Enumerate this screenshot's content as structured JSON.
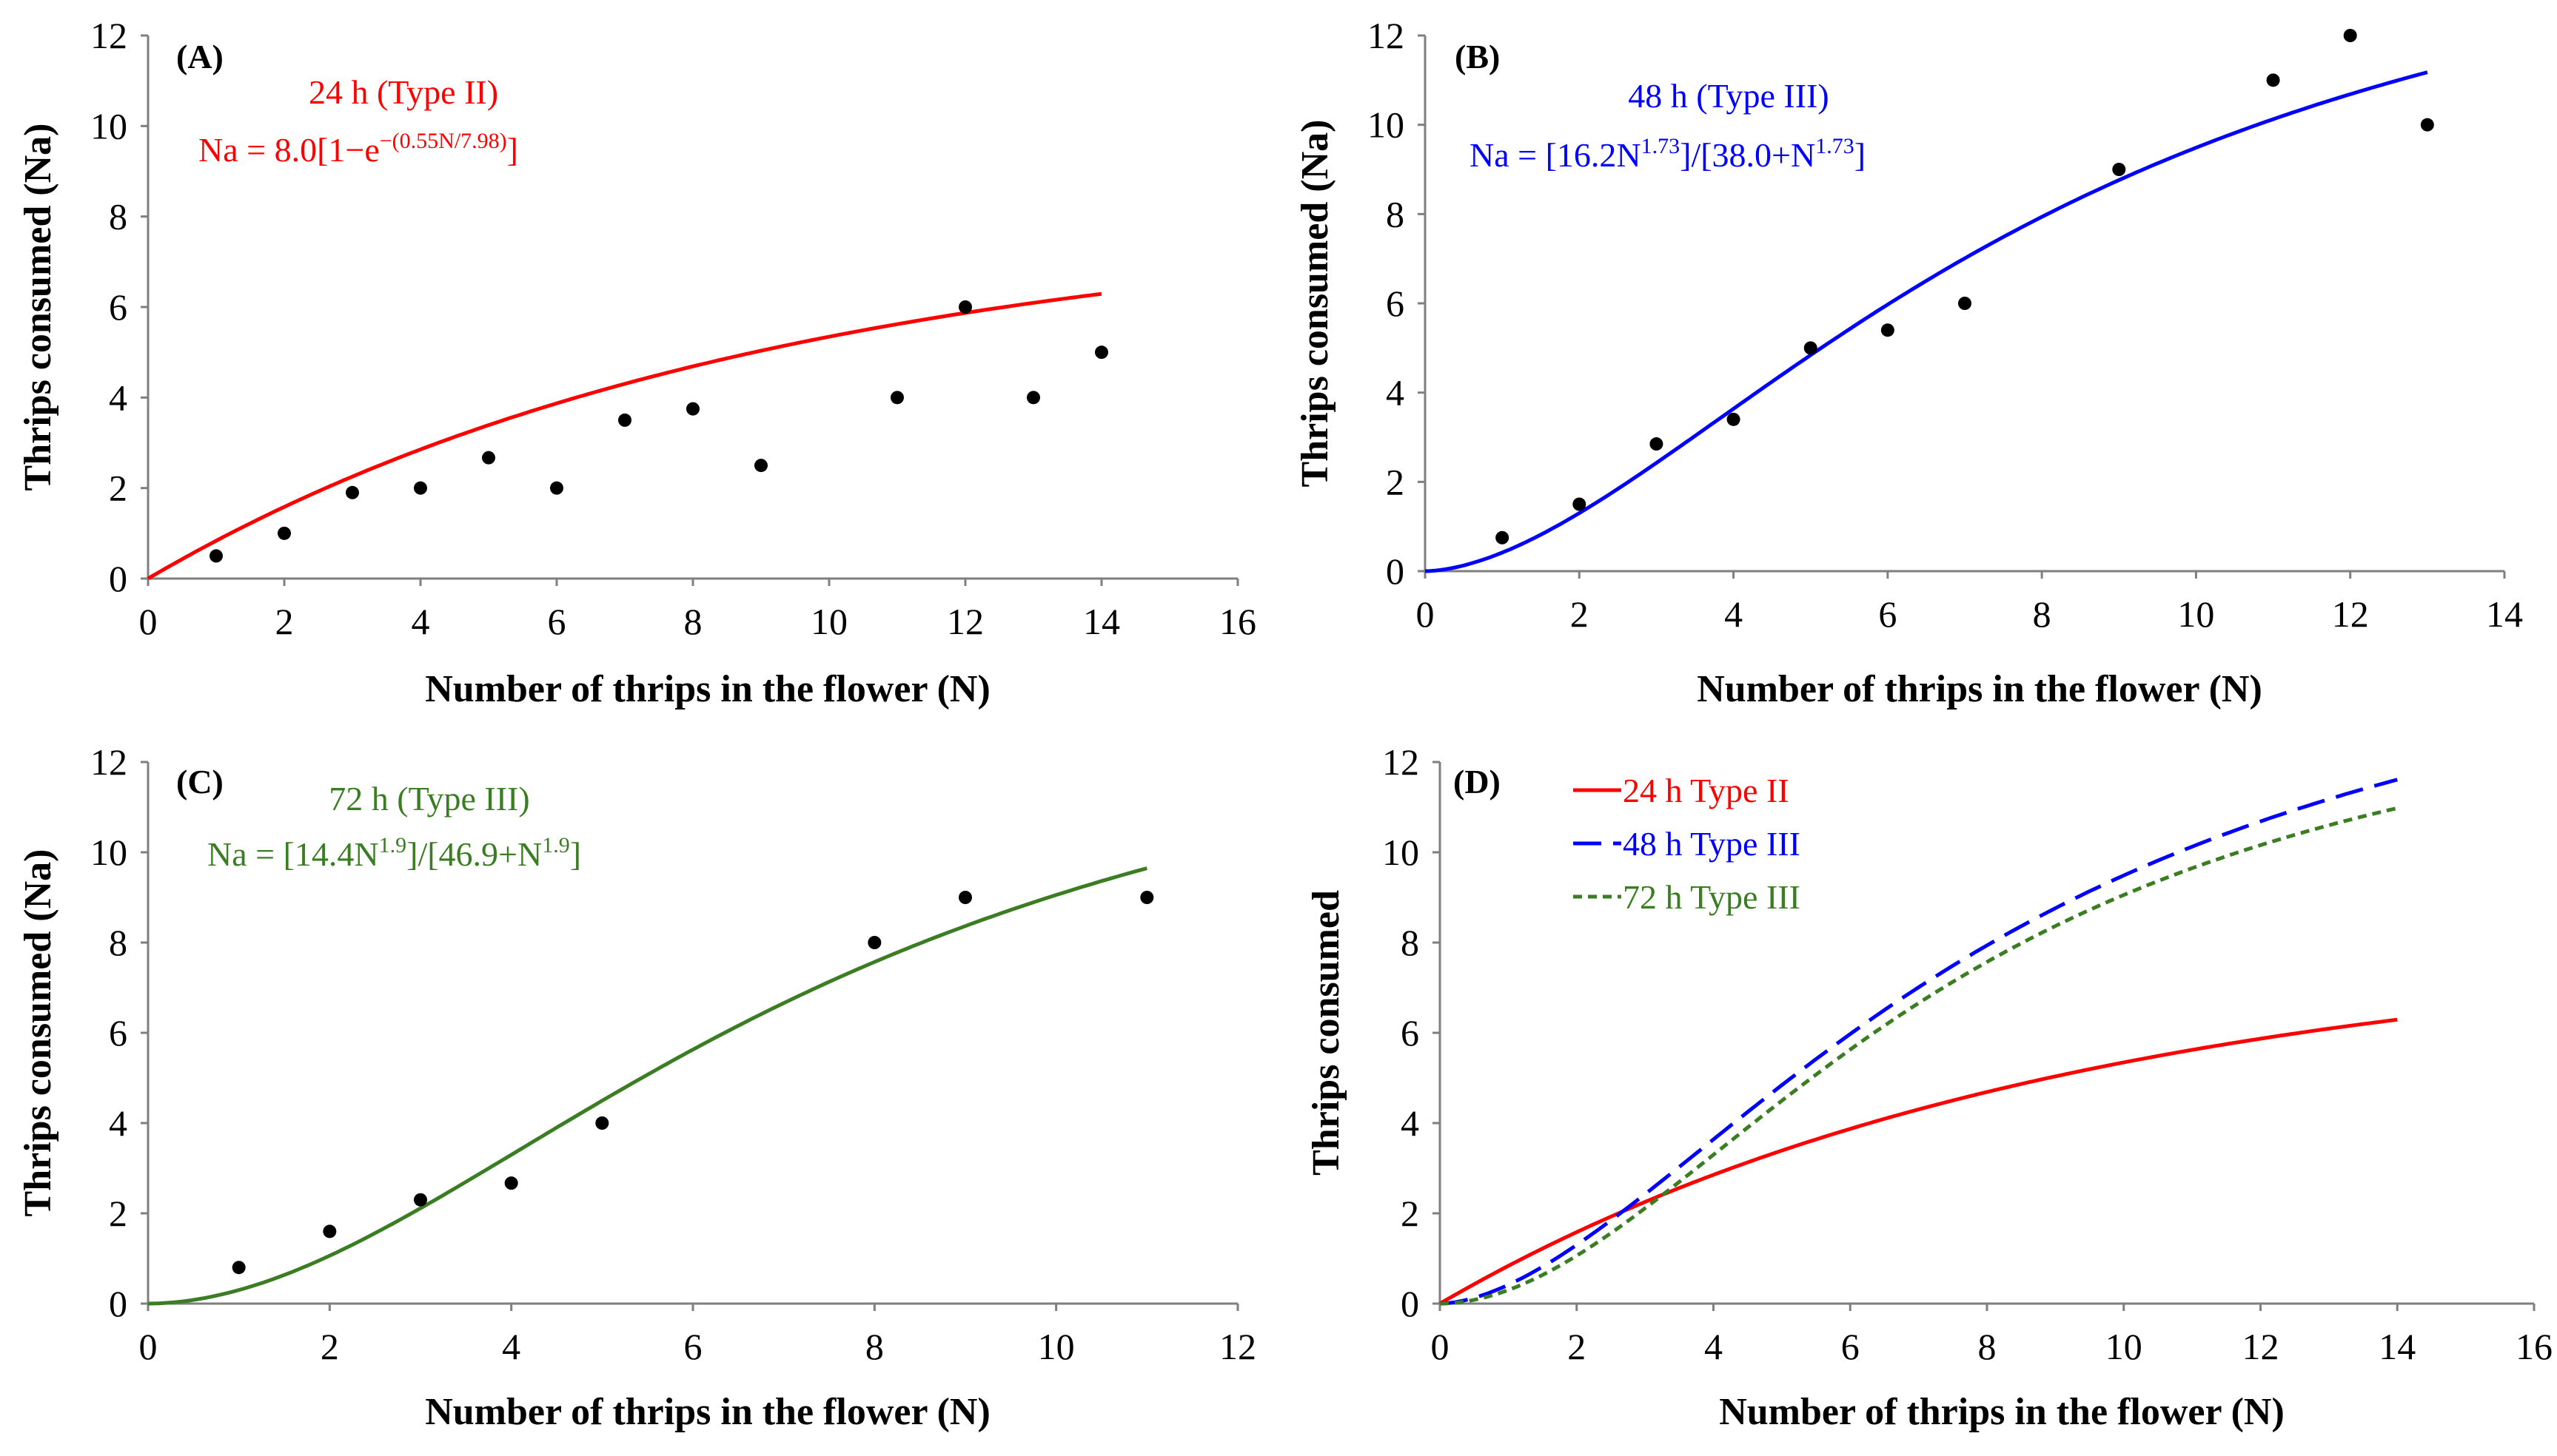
{
  "chart_data": [
    {
      "type": "scatter",
      "panel_label": "(A)",
      "annotation_title": "24 h (Type II)",
      "equation": {
        "prefix": "Na = 8.0[1−e",
        "sup": "−(0.55N/7.98)",
        "suffix": "]"
      },
      "color": "#ff0000",
      "xlabel": "Number of thrips in the flower (N)",
      "ylabel": "Thrips consumed (Na)",
      "xlim": [
        0,
        16
      ],
      "ylim": [
        0,
        12
      ],
      "xticks": [
        "0",
        "2",
        "4",
        "6",
        "8",
        "10",
        "12",
        "14",
        "16"
      ],
      "yticks": [
        "0",
        "2",
        "4",
        "6",
        "8",
        "10",
        "12"
      ],
      "points": {
        "x": [
          1,
          2,
          3,
          4,
          5,
          6,
          7,
          8,
          9,
          11,
          12,
          13,
          14
        ],
        "y": [
          0.5,
          1.0,
          1.9,
          2.0,
          2.67,
          2.0,
          3.5,
          3.75,
          2.5,
          4.0,
          6.0,
          4.0,
          5.0
        ]
      },
      "fit": {
        "model": "type2",
        "a": 8.0,
        "b": 0.55,
        "c": 7.98,
        "x_range": [
          0,
          14
        ]
      }
    },
    {
      "type": "scatter",
      "panel_label": "(B)",
      "annotation_title": "48 h (Type III)",
      "equation": {
        "p1": "Na = [16.2N",
        "s1": "1.73",
        "p2": "]/[38.0+N",
        "s2": "1.73",
        "p3": "]"
      },
      "color": "#0000ff",
      "xlabel": "Number of thrips in the flower (N)",
      "ylabel": "Thrips consumed (Na)",
      "xlim": [
        0,
        14
      ],
      "ylim": [
        0,
        12
      ],
      "xticks": [
        "0",
        "2",
        "4",
        "6",
        "8",
        "10",
        "12",
        "14"
      ],
      "yticks": [
        "0",
        "2",
        "4",
        "6",
        "8",
        "10",
        "12"
      ],
      "points": {
        "x": [
          1,
          2,
          3,
          4,
          5,
          6,
          7,
          9,
          11,
          12,
          13
        ],
        "y": [
          0.75,
          1.5,
          2.85,
          3.4,
          5.0,
          5.4,
          6.0,
          9.0,
          11.0,
          12.0,
          10.0
        ]
      },
      "fit": {
        "model": "type3",
        "a": 16.2,
        "n": 1.73,
        "k": 38.0,
        "x_range": [
          0,
          13
        ]
      }
    },
    {
      "type": "scatter",
      "panel_label": "(C)",
      "annotation_title": "72 h (Type III)",
      "equation": {
        "p1": "Na = [14.4N",
        "s1": "1.9",
        "p2": "]/[46.9+N",
        "s2": "1.9",
        "p3": "]"
      },
      "color": "#3a7d22",
      "xlabel": "Number of thrips in the flower (N)",
      "ylabel": "Thrips consumed (Na)",
      "xlim": [
        0,
        12
      ],
      "ylim": [
        0,
        12
      ],
      "xticks": [
        "0",
        "2",
        "4",
        "6",
        "8",
        "10",
        "12"
      ],
      "yticks": [
        "0",
        "2",
        "4",
        "6",
        "8",
        "10",
        "12"
      ],
      "points": {
        "x": [
          1,
          2,
          3,
          4,
          5,
          8,
          9,
          11
        ],
        "y": [
          0.8,
          1.6,
          2.3,
          2.67,
          4.0,
          8.0,
          9.0,
          9.0
        ]
      },
      "fit": {
        "model": "type3",
        "a": 14.4,
        "n": 1.9,
        "k": 46.9,
        "x_range": [
          0,
          11
        ]
      }
    },
    {
      "type": "line",
      "panel_label": "(D)",
      "xlabel": "Number of thrips in the flower (N)",
      "ylabel": "Thrips consumed",
      "xlim": [
        0,
        16
      ],
      "ylim": [
        0,
        12
      ],
      "xticks": [
        "0",
        "2",
        "4",
        "6",
        "8",
        "10",
        "12",
        "14",
        "16"
      ],
      "yticks": [
        "0",
        "2",
        "4",
        "6",
        "8",
        "10",
        "12"
      ],
      "legend_position": "top-left",
      "series": [
        {
          "name": "24 h Type II",
          "color": "#ff0000",
          "style": "solid",
          "model": "type2",
          "a": 8.0,
          "b": 0.55,
          "c": 7.98,
          "x_range": [
            0,
            14
          ]
        },
        {
          "name": "48 h Type III",
          "color": "#0000ff",
          "style": "longdash",
          "model": "type3",
          "a": 16.2,
          "n": 1.73,
          "k": 38.0,
          "x_range": [
            0,
            14
          ]
        },
        {
          "name": "72 h Type III",
          "color": "#3a7d22",
          "style": "shortdash",
          "model": "type3",
          "a": 14.4,
          "n": 1.9,
          "k": 46.9,
          "x_range": [
            0,
            14
          ]
        }
      ]
    }
  ]
}
